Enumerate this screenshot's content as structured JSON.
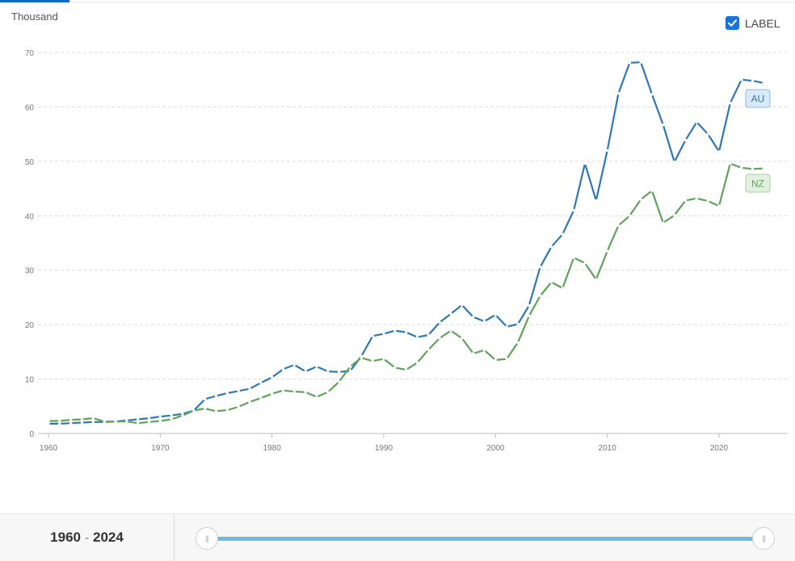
{
  "header": {
    "unit": "Thousand"
  },
  "toggle": {
    "label": "LABEL",
    "checked": true
  },
  "colors": {
    "au": "#2e78b3",
    "nz": "#5fa35a",
    "grid": "#dcdcdc",
    "slider": "#6cb9e2"
  },
  "range": {
    "start": "1960",
    "end": "2024",
    "separator": "-"
  },
  "chart_data": {
    "type": "line",
    "ylabel": "Thousand",
    "xlim": [
      1960,
      2025
    ],
    "ylim": [
      0,
      70
    ],
    "yticks": [
      0,
      10,
      20,
      30,
      40,
      50,
      60,
      70
    ],
    "xticks": [
      1960,
      1970,
      1980,
      1990,
      2000,
      2010,
      2020
    ],
    "grid": true,
    "x": [
      1960,
      1961,
      1962,
      1963,
      1964,
      1965,
      1966,
      1967,
      1968,
      1969,
      1970,
      1971,
      1972,
      1973,
      1974,
      1975,
      1976,
      1977,
      1978,
      1979,
      1980,
      1981,
      1982,
      1983,
      1984,
      1985,
      1986,
      1987,
      1988,
      1989,
      1990,
      1991,
      1992,
      1993,
      1994,
      1995,
      1996,
      1997,
      1998,
      1999,
      2000,
      2001,
      2002,
      2003,
      2004,
      2005,
      2006,
      2007,
      2008,
      2009,
      2010,
      2011,
      2012,
      2013,
      2014,
      2015,
      2016,
      2017,
      2018,
      2019,
      2020,
      2021,
      2022,
      2023,
      2024
    ],
    "series": [
      {
        "name": "AU",
        "values": [
          1.8,
          1.8,
          1.9,
          2.0,
          2.1,
          2.1,
          2.2,
          2.4,
          2.6,
          2.8,
          3.1,
          3.3,
          3.6,
          4.2,
          6.3,
          6.9,
          7.4,
          7.8,
          8.2,
          9.3,
          10.3,
          11.8,
          12.6,
          11.4,
          12.3,
          11.4,
          11.3,
          11.5,
          14.2,
          17.9,
          18.3,
          18.9,
          18.6,
          17.7,
          18.1,
          20.4,
          22.0,
          23.6,
          21.4,
          20.6,
          21.8,
          19.6,
          20.1,
          23.5,
          30.6,
          34.3,
          36.6,
          41.0,
          49.6,
          42.8,
          52.0,
          62.5,
          68.1,
          68.2,
          62.3,
          56.7,
          49.9,
          53.9,
          57.2,
          55.0,
          51.8,
          60.7,
          65.0,
          64.8,
          64.4
        ]
      },
      {
        "name": "NZ",
        "values": [
          2.3,
          2.3,
          2.5,
          2.6,
          2.8,
          2.2,
          2.2,
          2.2,
          1.9,
          2.1,
          2.3,
          2.6,
          3.3,
          4.2,
          4.6,
          4.1,
          4.3,
          4.9,
          5.8,
          6.5,
          7.3,
          7.9,
          7.7,
          7.6,
          6.7,
          7.6,
          9.5,
          12.3,
          13.9,
          13.3,
          13.7,
          12.1,
          11.7,
          13.0,
          15.4,
          17.5,
          18.9,
          17.5,
          14.7,
          15.3,
          13.5,
          13.7,
          16.7,
          21.6,
          25.3,
          27.8,
          26.7,
          32.3,
          31.3,
          28.3,
          33.5,
          38.2,
          40.0,
          43.0,
          44.6,
          38.7,
          40.1,
          42.8,
          43.2,
          42.7,
          41.8,
          49.6,
          48.8,
          48.6,
          48.7
        ]
      }
    ]
  }
}
